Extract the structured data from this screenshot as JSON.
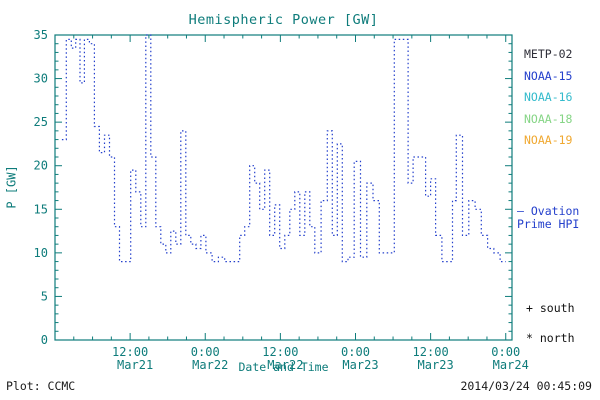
{
  "title": "Hemispheric Power [GW]",
  "colors": {
    "axis": "#0e7c7b",
    "line": "#2440cc",
    "background": "#ffffff"
  },
  "legend": {
    "items": [
      {
        "label": "METP-02",
        "color": "#2e2e38"
      },
      {
        "label": "NOAA-15",
        "color": "#2440cc"
      },
      {
        "label": "NOAA-16",
        "color": "#33bbcc"
      },
      {
        "label": "NOAA-18",
        "color": "#86d586"
      },
      {
        "label": "NOAA-19",
        "color": "#f0a830"
      }
    ],
    "ovation": {
      "marker": "—",
      "label": "Ovation Prime HPI",
      "color": "#2440cc"
    },
    "markers": [
      {
        "symbol": "+",
        "label": "south"
      },
      {
        "symbol": "*",
        "label": "north"
      }
    ]
  },
  "footer": {
    "left": "Plot: CCMC",
    "right": "2014/03/24 00:45:09"
  },
  "chart_data": {
    "type": "line",
    "style": "dotted-step",
    "title": "Hemispheric Power [GW]",
    "xlabel": "Date and Time",
    "ylabel": "P [GW]",
    "ylim": [
      0,
      35
    ],
    "y_major_ticks": [
      0,
      5,
      10,
      15,
      20,
      25,
      30,
      35
    ],
    "xlim_hours": [
      0,
      73
    ],
    "x_major_ticks": [
      {
        "hour": 12,
        "time": "12:00",
        "date": "Mar21"
      },
      {
        "hour": 24,
        "time": "0:00",
        "date": "Mar22"
      },
      {
        "hour": 36,
        "time": "12:00",
        "date": "Mar22"
      },
      {
        "hour": 48,
        "time": "0:00",
        "date": "Mar23"
      },
      {
        "hour": 60,
        "time": "12:00",
        "date": "Mar23"
      },
      {
        "hour": 72,
        "time": "0:00",
        "date": "Mar24"
      }
    ],
    "grid": false,
    "legend_position": "right-outside",
    "series": [
      {
        "name": "Ovation Prime HPI",
        "units": "GW",
        "points": [
          [
            1.1,
            23
          ],
          [
            1.8,
            34.5
          ],
          [
            2.6,
            33.5
          ],
          [
            3.3,
            34.5
          ],
          [
            4.0,
            29.5
          ],
          [
            4.7,
            34.5
          ],
          [
            5.5,
            34
          ],
          [
            6.3,
            24.5
          ],
          [
            7.1,
            21.5
          ],
          [
            7.9,
            23.5
          ],
          [
            8.7,
            21
          ],
          [
            9.5,
            13
          ],
          [
            10.3,
            9
          ],
          [
            11.3,
            9
          ],
          [
            12.1,
            19.5
          ],
          [
            12.9,
            17
          ],
          [
            13.7,
            13
          ],
          [
            14.5,
            35
          ],
          [
            15.3,
            21
          ],
          [
            16.1,
            13
          ],
          [
            16.9,
            11
          ],
          [
            17.7,
            10
          ],
          [
            18.5,
            12.5
          ],
          [
            19.3,
            11
          ],
          [
            20.1,
            24
          ],
          [
            20.9,
            12
          ],
          [
            21.7,
            11
          ],
          [
            22.5,
            10.5
          ],
          [
            23.3,
            12
          ],
          [
            24.1,
            10
          ],
          [
            25.1,
            9
          ],
          [
            26.1,
            9.5
          ],
          [
            27.1,
            9
          ],
          [
            28.3,
            9
          ],
          [
            29.5,
            12
          ],
          [
            30.3,
            13
          ],
          [
            31.1,
            20
          ],
          [
            31.9,
            18
          ],
          [
            32.7,
            15
          ],
          [
            33.5,
            19.5
          ],
          [
            34.3,
            12
          ],
          [
            35.1,
            15.5
          ],
          [
            35.9,
            10.5
          ],
          [
            36.7,
            12
          ],
          [
            37.5,
            15
          ],
          [
            38.3,
            17
          ],
          [
            39.1,
            12
          ],
          [
            39.9,
            17
          ],
          [
            40.7,
            13
          ],
          [
            41.5,
            10
          ],
          [
            42.5,
            16
          ],
          [
            43.5,
            24
          ],
          [
            44.3,
            12
          ],
          [
            45.1,
            22.5
          ],
          [
            45.9,
            9
          ],
          [
            46.8,
            9.5
          ],
          [
            47.8,
            20.5
          ],
          [
            48.8,
            9.5
          ],
          [
            49.8,
            18
          ],
          [
            50.8,
            16
          ],
          [
            51.8,
            10
          ],
          [
            53.0,
            10
          ],
          [
            54.2,
            34.5
          ],
          [
            55.6,
            34.5
          ],
          [
            56.4,
            18
          ],
          [
            57.2,
            21
          ],
          [
            58.4,
            21
          ],
          [
            59.2,
            16.5
          ],
          [
            60.0,
            18.5
          ],
          [
            60.8,
            12
          ],
          [
            61.8,
            9
          ],
          [
            62.9,
            9
          ],
          [
            63.5,
            16
          ],
          [
            64.1,
            23.5
          ],
          [
            65.1,
            12
          ],
          [
            66.1,
            16
          ],
          [
            67.1,
            15
          ],
          [
            68.1,
            12
          ],
          [
            69.1,
            10.5
          ],
          [
            70.1,
            10
          ],
          [
            71.1,
            9
          ]
        ]
      }
    ]
  }
}
